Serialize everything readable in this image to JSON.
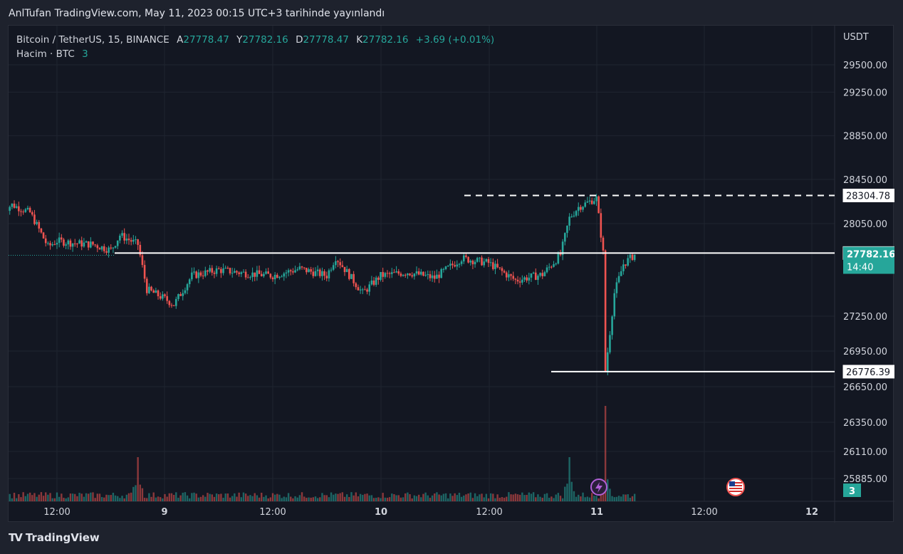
{
  "publication_note": "AnlTufan TradingView.com, May 11, 2023 00:15 UTC+3 tarihinde yayınlandı",
  "legend": {
    "symbol": "Bitcoin / TetherUS, 15, BINANCE",
    "open_label": "A",
    "open": "27778.47",
    "high_label": "Y",
    "high": "27782.16",
    "low_label": "D",
    "low": "27778.47",
    "close_label": "K",
    "close": "27782.16",
    "change": "+3.69 (+0.01%)",
    "volume_label": "Hacim · BTC",
    "volume_value": "3"
  },
  "price_axis": {
    "currency": "USDT",
    "ticks": [
      "29500.00",
      "29250.00",
      "28850.00",
      "28450.00",
      "28050.00",
      "27250.00",
      "26950.00",
      "26650.00",
      "26350.00",
      "26110.00",
      "25885.00"
    ],
    "tag_high": "28304.78",
    "tag_level": "27795.47",
    "tag_current_price": "27782.16",
    "tag_countdown": "14:40",
    "tag_volume": "3"
  },
  "time_axis": {
    "ticks": [
      "12:00",
      "9",
      "12:00",
      "10",
      "12:00",
      "11",
      "12:00",
      "12"
    ]
  },
  "footer": {
    "brand": "TradingView",
    "logo": "TV"
  },
  "colors": {
    "background": "#131722",
    "frame": "#1e222d",
    "grid": "#1f2430",
    "up": "#26a69a",
    "down": "#ef5350",
    "text": "#d1d4dc",
    "line": "#ffffff"
  },
  "icons": [
    "lightning-event-icon",
    "us-flag-event-icon"
  ],
  "chart_data": {
    "type": "candlestick",
    "symbol": "Bitcoin / TetherUS",
    "interval": "15",
    "exchange": "BINANCE",
    "x_range": [
      "May 8 ~06:00",
      "May 12 ~03:00"
    ],
    "ylim": [
      25800,
      29700
    ],
    "y_tick_values": [
      29500,
      29250,
      28850,
      28450,
      28050,
      27250,
      26950,
      26650,
      26350,
      26110,
      25885
    ],
    "price_path": [
      {
        "t": "May 8 06:00",
        "p": 28170
      },
      {
        "t": "May 8 07:00",
        "p": 28220
      },
      {
        "t": "May 8 09:00",
        "p": 28150
      },
      {
        "t": "May 8 11:00",
        "p": 27850
      },
      {
        "t": "May 8 12:00",
        "p": 27900
      },
      {
        "t": "May 8 14:00",
        "p": 27880
      },
      {
        "t": "May 8 16:00",
        "p": 27870
      },
      {
        "t": "May 8 18:00",
        "p": 27820
      },
      {
        "t": "May 8 19:00",
        "p": 27950
      },
      {
        "t": "May 8 21:00",
        "p": 27870
      },
      {
        "t": "May 8 22:00",
        "p": 27480
      },
      {
        "t": "May 9 00:00",
        "p": 27400
      },
      {
        "t": "May 9 01:00",
        "p": 27350
      },
      {
        "t": "May 9 03:00",
        "p": 27600
      },
      {
        "t": "May 9 06:00",
        "p": 27650
      },
      {
        "t": "May 9 09:00",
        "p": 27620
      },
      {
        "t": "May 9 12:00",
        "p": 27600
      },
      {
        "t": "May 9 15:00",
        "p": 27660
      },
      {
        "t": "May 9 18:00",
        "p": 27600
      },
      {
        "t": "May 9 19:00",
        "p": 27760
      },
      {
        "t": "May 9 22:00",
        "p": 27450
      },
      {
        "t": "May 10 00:00",
        "p": 27600
      },
      {
        "t": "May 10 03:00",
        "p": 27630
      },
      {
        "t": "May 10 06:00",
        "p": 27580
      },
      {
        "t": "May 10 09:00",
        "p": 27750
      },
      {
        "t": "May 10 12:00",
        "p": 27710
      },
      {
        "t": "May 10 15:00",
        "p": 27560
      },
      {
        "t": "May 10 18:00",
        "p": 27610
      },
      {
        "t": "May 10 20:00",
        "p": 27780
      },
      {
        "t": "May 10 21:00",
        "p": 28100
      },
      {
        "t": "May 10 22:00",
        "p": 28200
      },
      {
        "t": "May 11 00:00",
        "p": 28280
      },
      {
        "t": "May 11 00:45",
        "p": 27795
      },
      {
        "t": "May 11 01:00",
        "p": 26776
      },
      {
        "t": "May 11 02:00",
        "p": 27450
      },
      {
        "t": "May 11 03:00",
        "p": 27700
      },
      {
        "t": "May 11 04:15",
        "p": 27782
      }
    ],
    "levels": [
      {
        "value": 28304.78,
        "style": "dashed"
      },
      {
        "value": 27795.47,
        "style": "solid"
      },
      {
        "value": 26776.39,
        "style": "solid"
      }
    ],
    "last_price": 27782.16,
    "volume": {
      "unit": "BTC",
      "last": 3,
      "notable_spikes": [
        {
          "t": "May 8 21:00",
          "v": "high"
        },
        {
          "t": "May 10 21:00",
          "v": "high"
        },
        {
          "t": "May 11 01:00",
          "v": "max"
        }
      ]
    },
    "grid": true
  }
}
